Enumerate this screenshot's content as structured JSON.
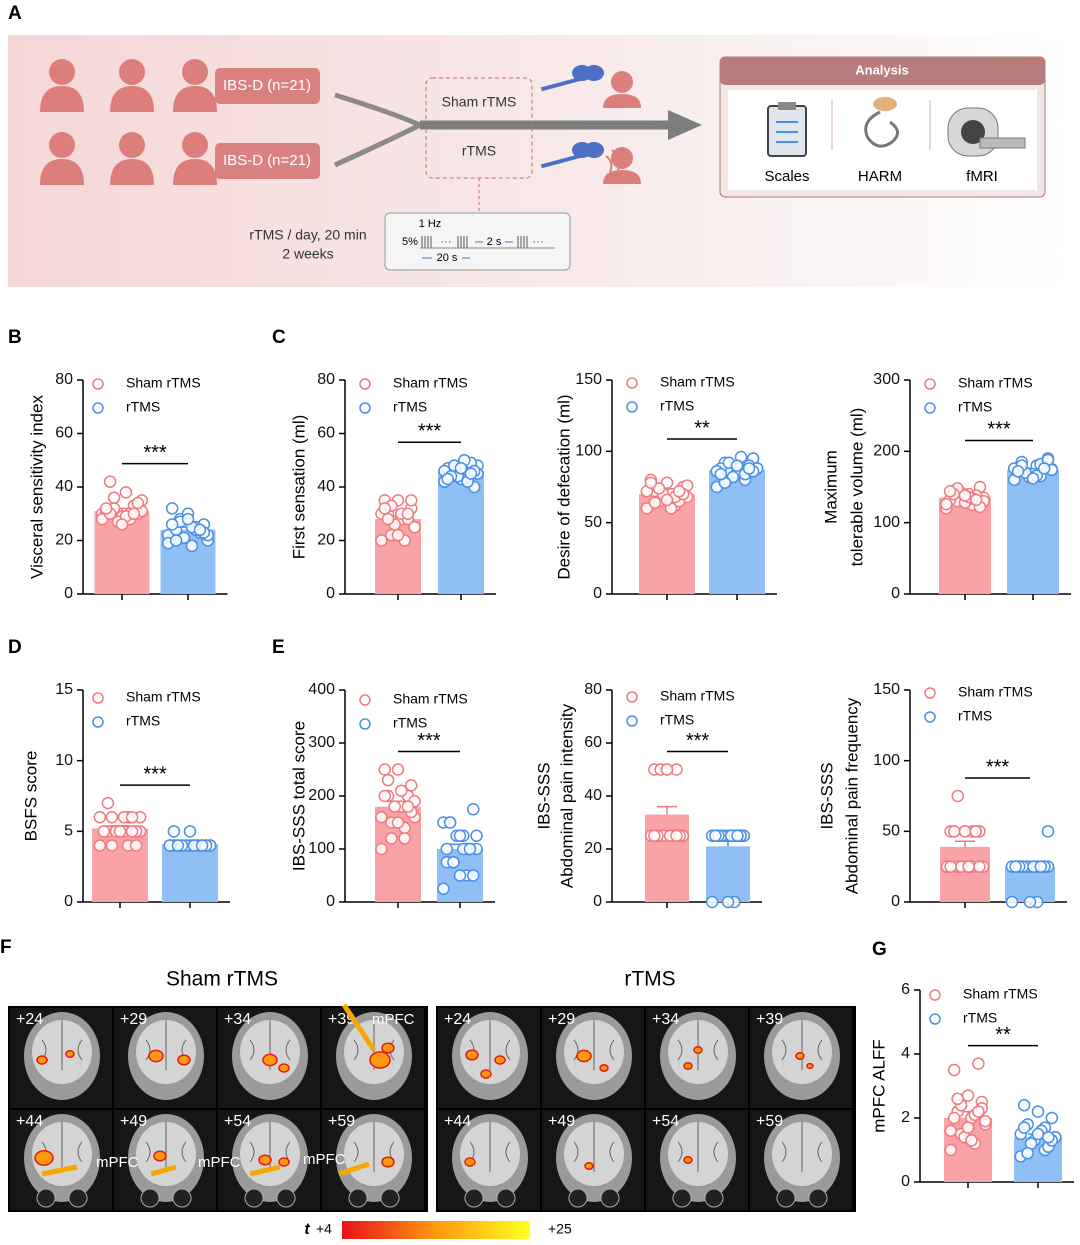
{
  "panel_labels": [
    "A",
    "B",
    "C",
    "D",
    "E",
    "F",
    "G"
  ],
  "panel_a": {
    "groups": [
      "IBS-D (n=21)",
      "IBS-D (n=21)"
    ],
    "arms": [
      "Sham rTMS",
      "rTMS"
    ],
    "protocol": [
      "rTMS / day, 20 min",
      "2 weeks"
    ],
    "pulse": {
      "frequency": "1 Hz",
      "intensity": "5%",
      "dots": "···",
      "interval": "2 s",
      "train": "20 s"
    },
    "analysis": {
      "title": "Analysis",
      "items": [
        "Scales",
        "HARM",
        "fMRI"
      ]
    }
  },
  "chart_data": [
    {
      "type": "bar",
      "y_label": [
        "Visceral sensitivity index"
      ],
      "ylim": [
        0,
        80
      ],
      "yticks": [
        0,
        20,
        40,
        60,
        80
      ],
      "annotation": "***",
      "series": [
        {
          "name": "Sham rTMS",
          "color": "#f9a3a6",
          "edge_color": "#ef7a80",
          "values": [
            31
          ],
          "errors": [
            1
          ],
          "points": [
            30,
            28,
            32,
            35,
            38,
            42,
            30,
            29,
            31,
            33,
            27,
            28,
            30,
            36,
            31,
            29,
            30,
            34,
            26,
            32,
            30
          ]
        },
        {
          "name": "rTMS",
          "color": "#90bff5",
          "edge_color": "#4a8fe6",
          "values": [
            24
          ],
          "errors": [
            1
          ],
          "points": [
            22,
            25,
            28,
            20,
            18,
            24,
            26,
            30,
            32,
            23,
            21,
            19,
            24,
            27,
            22,
            25,
            20,
            23,
            28,
            26,
            24
          ]
        }
      ]
    },
    {
      "type": "bar",
      "y_label": [
        "First sensation (ml)"
      ],
      "ylim": [
        0,
        80
      ],
      "yticks": [
        0,
        20,
        40,
        60,
        80
      ],
      "annotation": "***",
      "series": [
        {
          "name": "Sham rTMS",
          "color": "#f9a3a6",
          "edge_color": "#ef7a80",
          "values": [
            28
          ],
          "errors": [
            1
          ],
          "points": [
            20,
            20,
            22,
            25,
            28,
            30,
            32,
            35,
            35,
            28,
            26,
            30,
            20,
            33,
            25,
            30,
            28,
            35,
            22,
            32,
            30
          ]
        },
        {
          "name": "rTMS",
          "color": "#90bff5",
          "edge_color": "#4a8fe6",
          "values": [
            46
          ],
          "errors": [
            1
          ],
          "points": [
            42,
            44,
            46,
            48,
            50,
            45,
            40,
            43,
            47,
            49,
            44,
            46,
            42,
            48,
            45,
            50,
            44,
            46,
            47,
            43,
            45
          ]
        }
      ]
    },
    {
      "type": "bar",
      "y_label": [
        "Desire of defecation (ml)"
      ],
      "ylim": [
        0,
        150
      ],
      "yticks": [
        0,
        50,
        100,
        150
      ],
      "annotation": "**",
      "series": [
        {
          "name": "Sham rTMS",
          "color": "#f9a3a6",
          "edge_color": "#ef7a80",
          "values": [
            70
          ],
          "errors": [
            1.5
          ],
          "points": [
            60,
            62,
            65,
            68,
            70,
            72,
            75,
            78,
            80,
            65,
            70,
            72,
            68,
            74,
            76,
            60,
            64,
            70,
            66,
            78,
            72
          ]
        },
        {
          "name": "rTMS",
          "color": "#90bff5",
          "edge_color": "#4a8fe6",
          "values": [
            87
          ],
          "errors": [
            1.5
          ],
          "points": [
            75,
            80,
            85,
            88,
            90,
            92,
            95,
            85,
            88,
            90,
            82,
            86,
            84,
            92,
            88,
            96,
            78,
            86,
            90,
            84,
            88
          ]
        }
      ]
    },
    {
      "type": "bar",
      "y_label": [
        "Maximum",
        "tolerable volume (ml)"
      ],
      "ylim": [
        0,
        300
      ],
      "yticks": [
        0,
        100,
        200,
        300
      ],
      "annotation": "***",
      "series": [
        {
          "name": "Sham rTMS",
          "color": "#f9a3a6",
          "edge_color": "#ef7a80",
          "values": [
            135
          ],
          "errors": [
            2
          ],
          "points": [
            120,
            125,
            130,
            135,
            140,
            145,
            150,
            128,
            132,
            138,
            142,
            126,
            134,
            148,
            130,
            136,
            140,
            122,
            138,
            144,
            132
          ]
        },
        {
          "name": "rTMS",
          "color": "#90bff5",
          "edge_color": "#4a8fe6",
          "values": [
            174
          ],
          "errors": [
            2
          ],
          "points": [
            160,
            165,
            170,
            175,
            180,
            185,
            190,
            168,
            172,
            178,
            164,
            176,
            182,
            170,
            174,
            166,
            180,
            188,
            162,
            172,
            176
          ]
        }
      ]
    },
    {
      "type": "bar",
      "y_label": [
        "BSFS score"
      ],
      "ylim": [
        0,
        15
      ],
      "yticks": [
        0,
        5,
        10,
        15
      ],
      "annotation": "***",
      "series": [
        {
          "name": "Sham rTMS",
          "color": "#f9a3a6",
          "edge_color": "#ef7a80",
          "values": [
            5.2
          ],
          "errors": [
            0.2
          ],
          "points": [
            4,
            4,
            4,
            5,
            5,
            5,
            5,
            5,
            5,
            5,
            5,
            6,
            6,
            6,
            6,
            6,
            7,
            4,
            5,
            5,
            6
          ]
        },
        {
          "name": "rTMS",
          "color": "#90bff5",
          "edge_color": "#4a8fe6",
          "values": [
            4.1
          ],
          "errors": [
            0.1
          ],
          "points": [
            4,
            4,
            4,
            4,
            4,
            4,
            4,
            4,
            4,
            4,
            4,
            4,
            4,
            4,
            4,
            4,
            4,
            4,
            5,
            5,
            4
          ]
        }
      ]
    },
    {
      "type": "bar",
      "y_label": [
        "IBS-SSS total score"
      ],
      "ylim": [
        0,
        400
      ],
      "yticks": [
        0,
        100,
        200,
        300,
        400
      ],
      "annotation": "***",
      "series": [
        {
          "name": "Sham rTMS",
          "color": "#f9a3a6",
          "edge_color": "#ef7a80",
          "values": [
            180
          ],
          "errors": [
            10
          ],
          "points": [
            100,
            120,
            150,
            160,
            180,
            200,
            220,
            250,
            250,
            200,
            180,
            160,
            140,
            120,
            190,
            210,
            230,
            170,
            150,
            200,
            180
          ]
        },
        {
          "name": "rTMS",
          "color": "#90bff5",
          "edge_color": "#4a8fe6",
          "values": [
            100
          ],
          "errors": [
            9
          ],
          "points": [
            25,
            50,
            75,
            100,
            125,
            150,
            175,
            50,
            75,
            100,
            125,
            150,
            100,
            75,
            125,
            100,
            150,
            50,
            125,
            100,
            100
          ]
        }
      ]
    },
    {
      "type": "bar",
      "y_label": [
        "IBS-SSS",
        "Abdominal pain intensity"
      ],
      "ylim": [
        0,
        80
      ],
      "yticks": [
        0,
        20,
        40,
        60,
        80
      ],
      "annotation": "***",
      "series": [
        {
          "name": "Sham rTMS",
          "color": "#f9a3a6",
          "edge_color": "#ef7a80",
          "values": [
            33
          ],
          "errors": [
            3
          ],
          "points": [
            25,
            25,
            25,
            25,
            25,
            25,
            25,
            50,
            50,
            50,
            25,
            25,
            25,
            50,
            25,
            25,
            25,
            25,
            50,
            25,
            25
          ]
        },
        {
          "name": "rTMS",
          "color": "#90bff5",
          "edge_color": "#4a8fe6",
          "values": [
            21
          ],
          "errors": [
            2
          ],
          "points": [
            0,
            0,
            25,
            25,
            25,
            25,
            25,
            25,
            25,
            25,
            25,
            25,
            25,
            25,
            25,
            25,
            25,
            25,
            0,
            25,
            25
          ]
        }
      ]
    },
    {
      "type": "bar",
      "y_label": [
        "IBS-SSS",
        "Abdominal pain frequency"
      ],
      "ylim": [
        0,
        150
      ],
      "yticks": [
        0,
        50,
        100,
        150
      ],
      "annotation": "***",
      "series": [
        {
          "name": "Sham rTMS",
          "color": "#f9a3a6",
          "edge_color": "#ef7a80",
          "values": [
            39
          ],
          "errors": [
            4
          ],
          "points": [
            25,
            25,
            25,
            25,
            25,
            50,
            50,
            50,
            50,
            50,
            25,
            25,
            50,
            75,
            25,
            25,
            50,
            25,
            50,
            25,
            50
          ]
        },
        {
          "name": "rTMS",
          "color": "#90bff5",
          "edge_color": "#4a8fe6",
          "values": [
            25
          ],
          "errors": [
            3
          ],
          "points": [
            0,
            0,
            25,
            25,
            25,
            25,
            25,
            25,
            25,
            25,
            25,
            25,
            25,
            25,
            50,
            25,
            25,
            25,
            0,
            25,
            25
          ]
        }
      ]
    },
    {
      "type": "bar",
      "y_label": [
        "mPFC ALFF"
      ],
      "ylim": [
        0,
        6
      ],
      "yticks": [
        0,
        2,
        4,
        6
      ],
      "annotation": "**",
      "series": [
        {
          "name": "Sham rTMS",
          "color": "#f9a3a6",
          "edge_color": "#ef7a80",
          "values": [
            2.0
          ],
          "errors": [
            0.2
          ],
          "points": [
            1.0,
            1.2,
            1.5,
            1.8,
            2.0,
            2.2,
            2.5,
            2.7,
            3.5,
            3.7,
            1.4,
            1.6,
            2.1,
            2.4,
            1.9,
            1.3,
            2.6,
            2.3,
            1.7,
            2.0,
            2.2
          ]
        },
        {
          "name": "rTMS",
          "color": "#90bff5",
          "edge_color": "#4a8fe6",
          "values": [
            1.4
          ],
          "errors": [
            0.1
          ],
          "points": [
            0.8,
            1.0,
            1.2,
            1.4,
            1.6,
            1.8,
            2.0,
            2.2,
            2.4,
            1.1,
            1.3,
            1.5,
            1.7,
            1.2,
            1.4,
            1.6,
            0.9,
            1.3,
            1.5,
            1.7,
            1.4
          ]
        }
      ]
    }
  ],
  "panel_f": {
    "groups": [
      {
        "title": "Sham rTMS",
        "slices": [
          "+24",
          "+29",
          "+34",
          "+39",
          "+44",
          "+49",
          "+54",
          "+59"
        ],
        "region_labels": [
          "mPFC",
          "mPFC",
          "mPFC",
          "mPFC"
        ]
      },
      {
        "title": "rTMS",
        "slices": [
          "+24",
          "+29",
          "+34",
          "+39",
          "+44",
          "+49",
          "+54",
          "+59"
        ]
      }
    ],
    "colorbar": {
      "symbol": "t",
      "min_label": "+4",
      "max_label": "+25"
    }
  }
}
